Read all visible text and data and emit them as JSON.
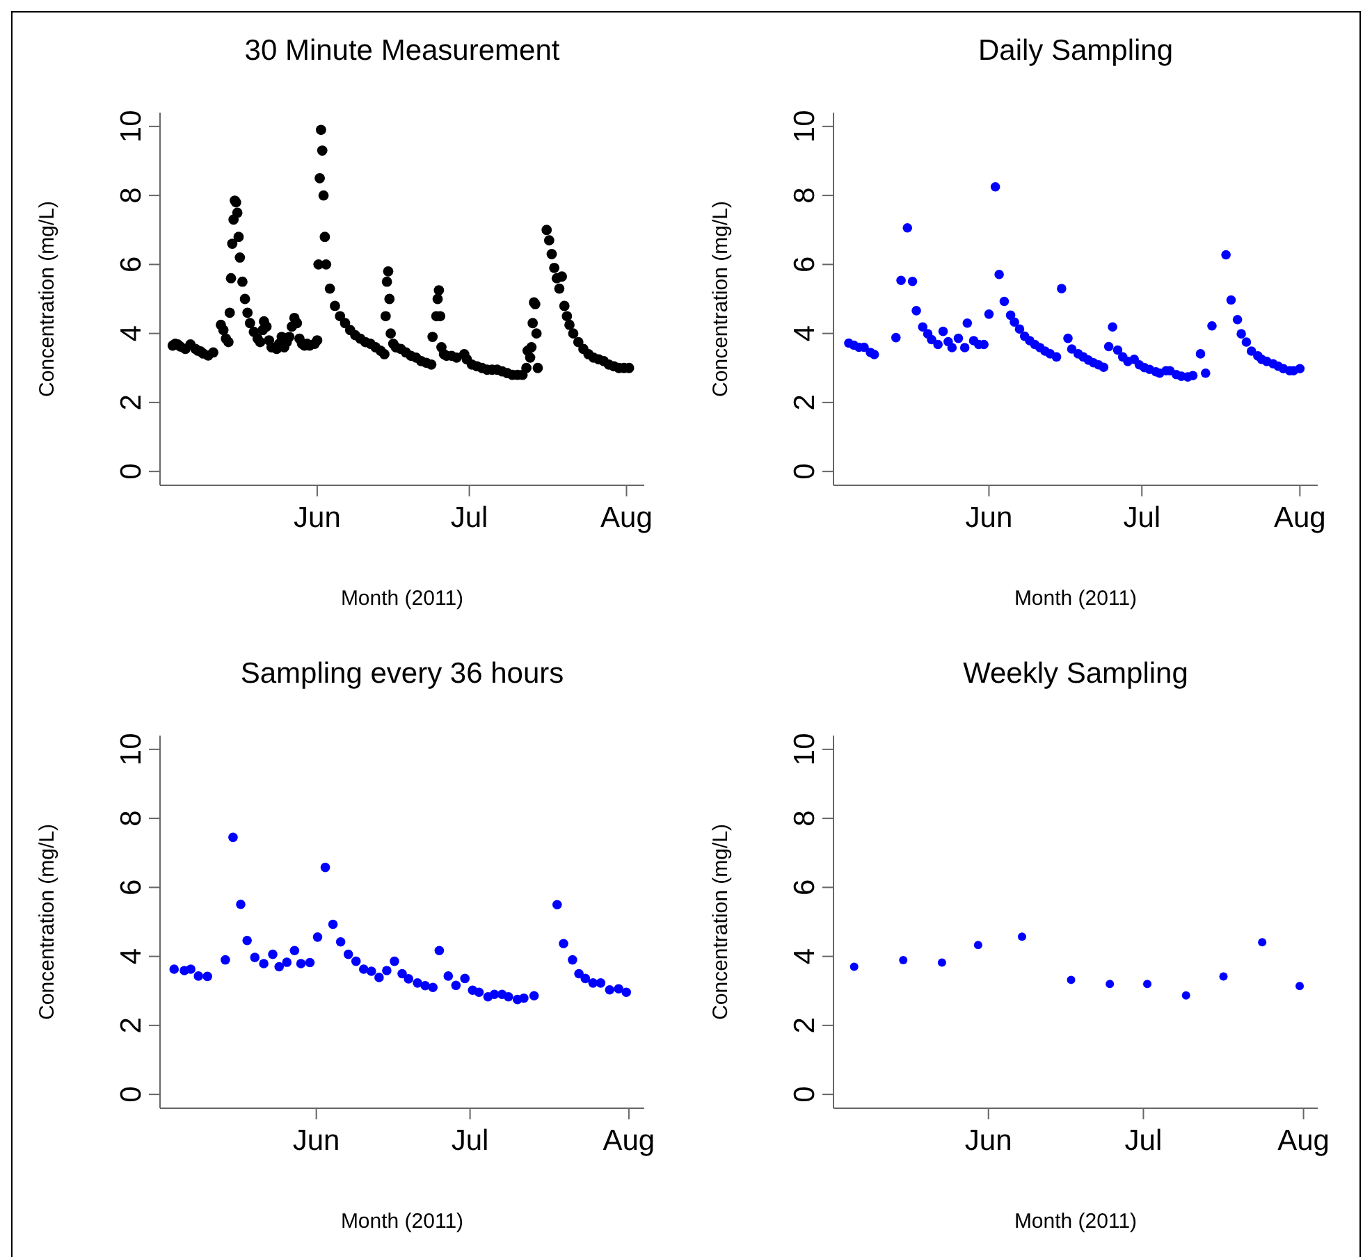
{
  "chart_data": [
    {
      "type": "scatter",
      "title": "30 Minute Measurement",
      "xlabel": "Month (2011)",
      "ylabel": "Concentration (mg/L)",
      "marker": "circle",
      "xlim": [
        "2011-05-01T00:00",
        "2011-08-04T12:00"
      ],
      "xticks": [
        {
          "value": "2011-06-01T00:00",
          "label": "Jun"
        },
        {
          "value": "2011-07-01T00:00",
          "label": "Jul"
        },
        {
          "value": "2011-08-01T00:00",
          "label": "Aug"
        }
      ],
      "ylim": [
        -0.4,
        10.4
      ],
      "yticks": [
        0,
        2,
        4,
        6,
        8,
        10
      ],
      "series": [
        {
          "color": "#000000",
          "x": [
            "2011-05-03T12:00",
            "2011-05-04T00:00",
            "2011-05-04T12:00",
            "2011-05-05T00:00",
            "2011-05-06T00:00",
            "2011-05-07T00:00",
            "2011-05-08T00:00",
            "2011-05-08T12:00",
            "2011-05-09T00:00",
            "2011-05-09T12:00",
            "2011-05-10T12:00",
            "2011-05-11T12:00",
            "2011-05-13T00:00",
            "2011-05-13T12:00",
            "2011-05-14T00:00",
            "2011-05-14T12:00",
            "2011-05-14T18:00",
            "2011-05-15T00:00",
            "2011-05-15T06:00",
            "2011-05-15T12:00",
            "2011-05-15T18:00",
            "2011-05-16T00:00",
            "2011-05-16T06:00",
            "2011-05-16T12:00",
            "2011-05-16T18:00",
            "2011-05-17T06:00",
            "2011-05-17T18:00",
            "2011-05-18T06:00",
            "2011-05-18T18:00",
            "2011-05-19T12:00",
            "2011-05-20T06:00",
            "2011-05-20T18:00",
            "2011-05-21T06:00",
            "2011-05-21T12:00",
            "2011-05-22T00:00",
            "2011-05-22T12:00",
            "2011-05-23T00:00",
            "2011-05-24T00:00",
            "2011-05-24T12:00",
            "2011-05-25T00:00",
            "2011-05-25T12:00",
            "2011-05-26T00:00",
            "2011-05-26T12:00",
            "2011-05-27T00:00",
            "2011-05-27T12:00",
            "2011-05-28T00:00",
            "2011-05-28T12:00",
            "2011-05-29T00:00",
            "2011-05-29T12:00",
            "2011-05-30T00:00",
            "2011-05-30T12:00",
            "2011-05-31T12:00",
            "2011-06-01T00:00",
            "2011-06-01T06:00",
            "2011-06-01T12:00",
            "2011-06-01T18:00",
            "2011-06-02T00:00",
            "2011-06-02T06:00",
            "2011-06-02T12:00",
            "2011-06-02T18:00",
            "2011-06-03T12:00",
            "2011-06-04T12:00",
            "2011-06-05T12:00",
            "2011-06-06T12:00",
            "2011-06-07T12:00",
            "2011-06-08T12:00",
            "2011-06-09T12:00",
            "2011-06-10T12:00",
            "2011-06-11T12:00",
            "2011-06-12T12:00",
            "2011-06-13T12:00",
            "2011-06-14T06:00",
            "2011-06-14T12:00",
            "2011-06-14T18:00",
            "2011-06-15T00:00",
            "2011-06-15T06:00",
            "2011-06-15T12:00",
            "2011-06-16T00:00",
            "2011-06-16T12:00",
            "2011-06-17T12:00",
            "2011-06-18T12:00",
            "2011-06-19T12:00",
            "2011-06-20T12:00",
            "2011-06-21T12:00",
            "2011-06-22T12:00",
            "2011-06-23T12:00",
            "2011-06-23T18:00",
            "2011-06-24T12:00",
            "2011-06-24T18:00",
            "2011-06-25T00:00",
            "2011-06-25T06:00",
            "2011-06-25T12:00",
            "2011-06-26T00:00",
            "2011-06-26T12:00",
            "2011-06-27T12:00",
            "2011-06-28T12:00",
            "2011-06-30T00:00",
            "2011-06-30T12:00",
            "2011-07-01T12:00",
            "2011-07-02T12:00",
            "2011-07-03T12:00",
            "2011-07-04T12:00",
            "2011-07-05T12:00",
            "2011-07-06T12:00",
            "2011-07-07T12:00",
            "2011-07-08T12:00",
            "2011-07-09T12:00",
            "2011-07-10T12:00",
            "2011-07-11T12:00",
            "2011-07-12T06:00",
            "2011-07-12T12:00",
            "2011-07-13T00:00",
            "2011-07-13T06:00",
            "2011-07-13T12:00",
            "2011-07-13T18:00",
            "2011-07-14T00:00",
            "2011-07-14T06:00",
            "2011-07-14T12:00",
            "2011-07-16T06:00",
            "2011-07-16T18:00",
            "2011-07-17T06:00",
            "2011-07-17T18:00",
            "2011-07-18T06:00",
            "2011-07-18T18:00",
            "2011-07-19T06:00",
            "2011-07-19T18:00",
            "2011-07-20T06:00",
            "2011-07-20T18:00",
            "2011-07-21T12:00",
            "2011-07-22T12:00",
            "2011-07-23T12:00",
            "2011-07-24T12:00",
            "2011-07-25T12:00",
            "2011-07-26T12:00",
            "2011-07-27T12:00",
            "2011-07-28T12:00",
            "2011-07-29T12:00",
            "2011-07-30T12:00",
            "2011-07-31T12:00",
            "2011-08-01T12:00"
          ],
          "values": [
            3.65,
            3.7,
            3.68,
            3.62,
            3.55,
            3.68,
            3.55,
            3.5,
            3.48,
            3.42,
            3.36,
            3.45,
            4.25,
            4.1,
            3.85,
            3.75,
            4.6,
            5.6,
            6.6,
            7.3,
            7.85,
            7.8,
            7.5,
            6.8,
            6.2,
            5.5,
            5.0,
            4.6,
            4.3,
            4.05,
            3.85,
            3.75,
            4.1,
            4.35,
            4.2,
            3.8,
            3.6,
            3.55,
            3.7,
            3.9,
            3.6,
            3.75,
            3.9,
            4.2,
            4.45,
            4.3,
            3.85,
            3.7,
            3.65,
            3.7,
            3.65,
            3.7,
            3.8,
            6.0,
            8.5,
            9.9,
            9.3,
            8.0,
            6.8,
            6.0,
            5.3,
            4.8,
            4.5,
            4.3,
            4.1,
            3.95,
            3.85,
            3.75,
            3.7,
            3.6,
            3.5,
            3.4,
            4.5,
            5.5,
            5.8,
            5.0,
            4.0,
            3.7,
            3.6,
            3.55,
            3.45,
            3.35,
            3.3,
            3.2,
            3.15,
            3.1,
            3.9,
            4.5,
            5.0,
            5.25,
            4.5,
            3.6,
            3.4,
            3.35,
            3.35,
            3.3,
            3.4,
            3.25,
            3.1,
            3.05,
            3.0,
            2.95,
            2.95,
            2.95,
            2.9,
            2.85,
            2.8,
            2.8,
            2.8,
            3.0,
            3.5,
            3.3,
            3.6,
            4.3,
            4.9,
            4.85,
            4.0,
            3.0,
            7.0,
            6.7,
            6.3,
            5.9,
            5.6,
            5.3,
            5.65,
            4.8,
            4.5,
            4.25,
            4.0,
            3.75,
            3.55,
            3.4,
            3.3,
            3.25,
            3.2,
            3.1,
            3.05,
            3.0,
            3.0,
            3.0
          ]
        }
      ]
    },
    {
      "type": "scatter",
      "title": "Daily Sampling",
      "xlabel": "Month (2011)",
      "ylabel": "Concentration (mg/L)",
      "marker": "circle",
      "xlim": [
        "2011-05-01T12:00",
        "2011-08-04T12:00"
      ],
      "xticks": [
        {
          "value": "2011-06-01T00:00",
          "label": "Jun"
        },
        {
          "value": "2011-07-01T00:00",
          "label": "Jul"
        },
        {
          "value": "2011-08-01T00:00",
          "label": "Aug"
        }
      ],
      "ylim": [
        -0.4,
        10.4
      ],
      "yticks": [
        0,
        2,
        4,
        6,
        8,
        10
      ],
      "series": [
        {
          "color": "#0000ff",
          "x": [
            "2011-05-04T12:00",
            "2011-05-05T12:00",
            "2011-05-06T12:00",
            "2011-05-07T12:00",
            "2011-05-08T18:00",
            "2011-05-09T12:00",
            "2011-05-13T18:00",
            "2011-05-14T18:00",
            "2011-05-16T00:00",
            "2011-05-17T00:00",
            "2011-05-17T18:00",
            "2011-05-19T00:00",
            "2011-05-20T00:00",
            "2011-05-20T18:00",
            "2011-05-22T00:00",
            "2011-05-23T00:00",
            "2011-05-24T00:00",
            "2011-05-24T18:00",
            "2011-05-26T00:00",
            "2011-05-27T06:00",
            "2011-05-27T18:00",
            "2011-05-29T00:00",
            "2011-05-30T00:00",
            "2011-05-31T00:00",
            "2011-06-01T00:00",
            "2011-06-02T06:00",
            "2011-06-03T00:00",
            "2011-06-04T00:00",
            "2011-06-05T06:00",
            "2011-06-06T00:00",
            "2011-06-07T00:00",
            "2011-06-08T00:00",
            "2011-06-09T00:00",
            "2011-06-10T00:00",
            "2011-06-11T00:00",
            "2011-06-12T00:00",
            "2011-06-13T00:00",
            "2011-06-14T06:00",
            "2011-06-15T06:00",
            "2011-06-16T12:00",
            "2011-06-17T06:00",
            "2011-06-18T12:00",
            "2011-06-19T12:00",
            "2011-06-20T12:00",
            "2011-06-21T12:00",
            "2011-06-22T12:00",
            "2011-06-23T12:00",
            "2011-06-24T12:00",
            "2011-06-25T06:00",
            "2011-06-26T06:00",
            "2011-06-27T06:00",
            "2011-06-28T06:00",
            "2011-06-29T12:00",
            "2011-06-30T12:00",
            "2011-07-01T12:00",
            "2011-07-02T12:00",
            "2011-07-03T18:00",
            "2011-07-04T12:00",
            "2011-07-05T18:00",
            "2011-07-06T12:00",
            "2011-07-07T18:00",
            "2011-07-08T18:00",
            "2011-07-10T00:00",
            "2011-07-11T00:00",
            "2011-07-12T12:00",
            "2011-07-13T12:00",
            "2011-07-14T18:00",
            "2011-07-17T12:00",
            "2011-07-18T12:00",
            "2011-07-19T18:00",
            "2011-07-20T12:00",
            "2011-07-21T12:00",
            "2011-07-22T12:00",
            "2011-07-23T18:00",
            "2011-07-24T12:00",
            "2011-07-25T12:00",
            "2011-07-26T18:00",
            "2011-07-27T18:00",
            "2011-07-28T18:00",
            "2011-07-30T00:00",
            "2011-07-30T18:00",
            "2011-08-01T00:00"
          ],
          "values": [
            3.72,
            3.66,
            3.6,
            3.6,
            3.45,
            3.39,
            3.88,
            5.54,
            7.06,
            5.51,
            4.66,
            4.19,
            3.99,
            3.82,
            3.68,
            4.06,
            3.76,
            3.59,
            3.86,
            3.59,
            4.3,
            3.79,
            3.68,
            3.68,
            4.56,
            8.25,
            5.71,
            4.93,
            4.53,
            4.33,
            4.13,
            3.92,
            3.79,
            3.68,
            3.59,
            3.49,
            3.41,
            3.32,
            5.3,
            3.86,
            3.55,
            3.41,
            3.32,
            3.23,
            3.15,
            3.09,
            3.02,
            3.62,
            4.19,
            3.52,
            3.32,
            3.19,
            3.25,
            3.09,
            3.01,
            2.96,
            2.89,
            2.85,
            2.92,
            2.92,
            2.81,
            2.76,
            2.74,
            2.78,
            3.41,
            2.85,
            4.22,
            6.28,
            4.97,
            4.4,
            3.99,
            3.75,
            3.49,
            3.35,
            3.25,
            3.19,
            3.12,
            3.05,
            2.98,
            2.92,
            2.92,
            2.98
          ]
        }
      ]
    },
    {
      "type": "scatter",
      "title": "Sampling every 36 hours",
      "xlabel": "Month (2011)",
      "ylabel": "Concentration (mg/L)",
      "marker": "circle",
      "xlim": [
        "2011-05-01T12:00",
        "2011-08-04T00:00"
      ],
      "xticks": [
        {
          "value": "2011-06-01T00:00",
          "label": "Jun"
        },
        {
          "value": "2011-07-01T00:00",
          "label": "Jul"
        },
        {
          "value": "2011-08-01T00:00",
          "label": "Aug"
        }
      ],
      "ylim": [
        -0.4,
        10.4
      ],
      "yticks": [
        0,
        2,
        4,
        6,
        8,
        10
      ],
      "series": [
        {
          "color": "#0000ff",
          "x": [
            "2011-05-04T06:00",
            "2011-05-06T06:00",
            "2011-05-07T12:00",
            "2011-05-09T00:00",
            "2011-05-10T18:00",
            "2011-05-14T06:00",
            "2011-05-15T18:00",
            "2011-05-17T06:00",
            "2011-05-18T12:00",
            "2011-05-20T00:00",
            "2011-05-21T18:00",
            "2011-05-23T12:00",
            "2011-05-24T18:00",
            "2011-05-26T06:00",
            "2011-05-27T18:00",
            "2011-05-29T00:00",
            "2011-05-30T18:00",
            "2011-06-01T06:00",
            "2011-06-02T18:00",
            "2011-06-04T06:00",
            "2011-06-05T18:00",
            "2011-06-07T06:00",
            "2011-06-08T18:00",
            "2011-06-10T06:00",
            "2011-06-11T18:00",
            "2011-06-13T06:00",
            "2011-06-14T18:00",
            "2011-06-16T06:00",
            "2011-06-17T18:00",
            "2011-06-19T00:00",
            "2011-06-20T18:00",
            "2011-06-22T06:00",
            "2011-06-23T18:00",
            "2011-06-25T00:00",
            "2011-06-26T18:00",
            "2011-06-28T06:00",
            "2011-06-30T00:00",
            "2011-07-01T12:00",
            "2011-07-02T18:00",
            "2011-07-04T12:00",
            "2011-07-05T18:00",
            "2011-07-07T06:00",
            "2011-07-08T12:00",
            "2011-07-10T06:00",
            "2011-07-11T12:00",
            "2011-07-13T12:00",
            "2011-07-18T00:00",
            "2011-07-19T06:00",
            "2011-07-21T00:00",
            "2011-07-22T06:00",
            "2011-07-23T12:00",
            "2011-07-25T00:00",
            "2011-07-26T12:00",
            "2011-07-28T06:00",
            "2011-07-30T00:00",
            "2011-07-31T12:00"
          ],
          "values": [
            3.63,
            3.59,
            3.63,
            3.43,
            3.42,
            3.9,
            7.45,
            5.51,
            4.46,
            3.97,
            3.79,
            4.06,
            3.7,
            3.83,
            4.17,
            3.79,
            3.82,
            4.56,
            6.58,
            4.93,
            4.42,
            4.06,
            3.86,
            3.63,
            3.57,
            3.39,
            3.59,
            3.86,
            3.5,
            3.35,
            3.23,
            3.15,
            3.1,
            4.17,
            3.43,
            3.16,
            3.36,
            3.02,
            2.96,
            2.83,
            2.9,
            2.9,
            2.83,
            2.75,
            2.79,
            2.86,
            5.5,
            4.37,
            3.9,
            3.5,
            3.36,
            3.23,
            3.23,
            3.03,
            3.06,
            2.96
          ]
        }
      ]
    },
    {
      "type": "scatter",
      "title": "Weekly Sampling",
      "xlabel": "Month (2011)",
      "ylabel": "Concentration (mg/L)",
      "marker": "circle",
      "xlim": [
        "2011-05-02T00:00",
        "2011-08-03T18:00"
      ],
      "xticks": [
        {
          "value": "2011-06-01T00:00",
          "label": "Jun"
        },
        {
          "value": "2011-07-01T00:00",
          "label": "Jul"
        },
        {
          "value": "2011-08-01T00:00",
          "label": "Aug"
        }
      ],
      "ylim": [
        -0.4,
        10.4
      ],
      "yticks": [
        0,
        2,
        4,
        6,
        8,
        10
      ],
      "series": [
        {
          "color": "#0000ff",
          "x": [
            "2011-05-06T00:00",
            "2011-05-15T12:00",
            "2011-05-23T00:00",
            "2011-05-30T00:00",
            "2011-06-07T12:00",
            "2011-06-17T00:00",
            "2011-06-24T12:00",
            "2011-07-01T18:00",
            "2011-07-09T06:00",
            "2011-07-16T12:00",
            "2011-07-24T00:00",
            "2011-07-31T06:00"
          ],
          "values": [
            3.7,
            3.89,
            3.82,
            4.33,
            4.57,
            3.32,
            3.2,
            3.2,
            2.87,
            3.42,
            4.41,
            3.14
          ]
        }
      ]
    }
  ]
}
